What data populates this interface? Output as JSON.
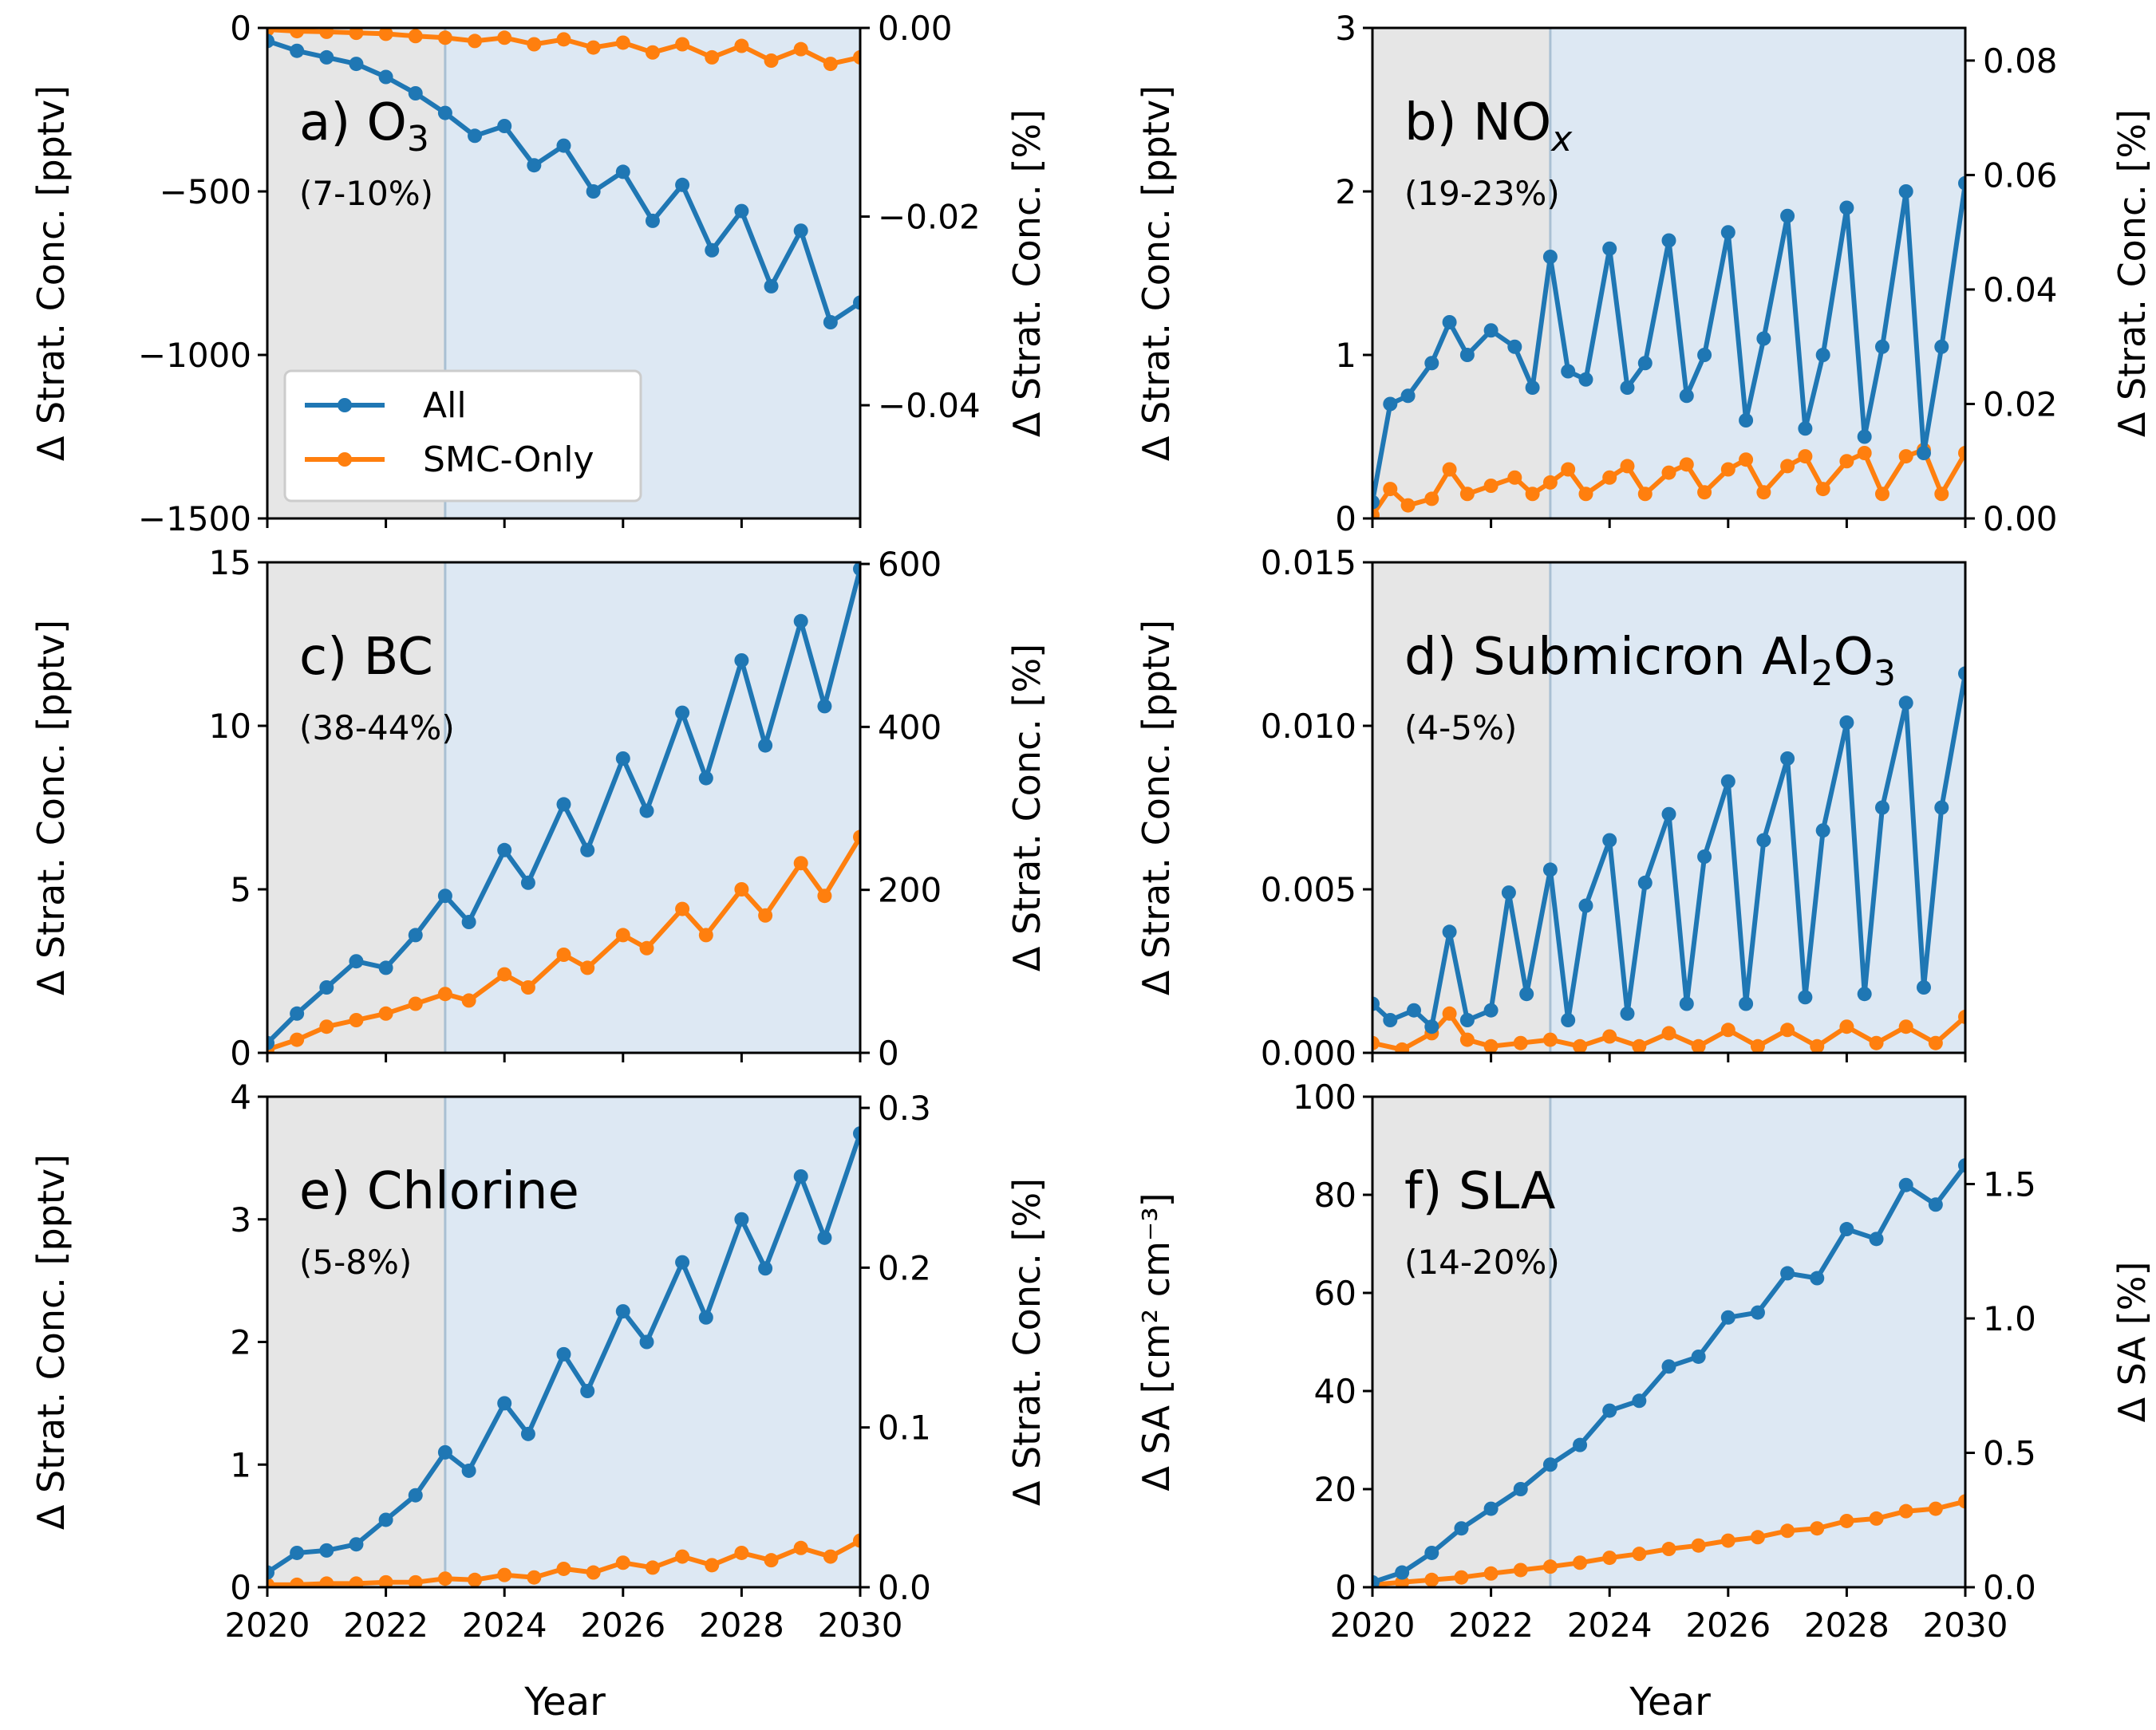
{
  "figure": {
    "xlabel": "Year",
    "left_ylabel_conc": "Δ Strat. Conc. [pptv]",
    "right_ylabel_conc": "Δ Strat. Conc. [%]",
    "left_ylabel_sa": "Δ SA [cm² cm⁻³]",
    "right_ylabel_sa": "Δ SA [%]"
  },
  "legend": {
    "items": [
      "All",
      "SMC-Only"
    ]
  },
  "colors": {
    "all": "#1f77b4",
    "smc": "#ff7f0e",
    "history": "#e6e6e6",
    "projection": "#dde8f3",
    "divider": "#a9c0d3"
  },
  "chart_data": [
    {
      "id": "a",
      "type": "line",
      "label": "a) O",
      "label_sub": "3",
      "note": "(7-10%)",
      "x_range": [
        2020,
        2030
      ],
      "x_divider": 2023,
      "x_ticks": [
        2020,
        2022,
        2024,
        2026,
        2028,
        2030
      ],
      "ylim": [
        -1500,
        0
      ],
      "y_ticks": [
        -1500,
        -1000,
        -500,
        0
      ],
      "y_tick_labels": [
        "−1500",
        "−1000",
        "−500",
        "0"
      ],
      "ylim_right": [
        -0.052,
        0
      ],
      "y_ticks_right": [
        -0.04,
        -0.02,
        0.0
      ],
      "y_tick_labels_right": [
        "−0.04",
        "−0.02",
        "0.00"
      ],
      "series": [
        {
          "name": "All",
          "key": "all",
          "x": [
            2020.0,
            2020.5,
            2021.0,
            2021.5,
            2022.0,
            2022.5,
            2023.0,
            2023.5,
            2024.0,
            2024.5,
            2025.0,
            2025.5,
            2026.0,
            2026.5,
            2027.0,
            2027.5,
            2028.0,
            2028.5,
            2029.0,
            2029.5,
            2030.0
          ],
          "y": [
            -40,
            -70,
            -90,
            -110,
            -150,
            -200,
            -260,
            -330,
            -300,
            -420,
            -360,
            -500,
            -440,
            -590,
            -480,
            -680,
            -560,
            -790,
            -620,
            -900,
            -840
          ]
        },
        {
          "name": "SMC-Only",
          "key": "smc",
          "x": [
            2020.0,
            2020.5,
            2021.0,
            2021.5,
            2022.0,
            2022.5,
            2023.0,
            2023.5,
            2024.0,
            2024.5,
            2025.0,
            2025.5,
            2026.0,
            2026.5,
            2027.0,
            2027.5,
            2028.0,
            2028.5,
            2029.0,
            2029.5,
            2030.0
          ],
          "y": [
            -5,
            -10,
            -12,
            -15,
            -18,
            -25,
            -30,
            -40,
            -30,
            -50,
            -35,
            -60,
            -45,
            -75,
            -50,
            -90,
            -55,
            -100,
            -65,
            -110,
            -90
          ]
        }
      ]
    },
    {
      "id": "b",
      "type": "line",
      "label": "b) NO",
      "label_sub": "x",
      "note": "(19-23%)",
      "x_range": [
        2020,
        2030
      ],
      "x_divider": 2023,
      "x_ticks": [
        2020,
        2022,
        2024,
        2026,
        2028,
        2030
      ],
      "ylim": [
        0,
        3
      ],
      "y_ticks": [
        0,
        1,
        2,
        3
      ],
      "y_tick_labels": [
        "0",
        "1",
        "2",
        "3"
      ],
      "ylim_right": [
        0,
        0.0857
      ],
      "y_ticks_right": [
        0.0,
        0.02,
        0.04,
        0.06,
        0.08
      ],
      "y_tick_labels_right": [
        "0.00",
        "0.02",
        "0.04",
        "0.06",
        "0.08"
      ],
      "series": [
        {
          "name": "All",
          "key": "all",
          "x": [
            2020.0,
            2020.3,
            2020.6,
            2021.0,
            2021.3,
            2021.6,
            2022.0,
            2022.4,
            2022.7,
            2023.0,
            2023.3,
            2023.6,
            2024.0,
            2024.3,
            2024.6,
            2025.0,
            2025.3,
            2025.6,
            2026.0,
            2026.3,
            2026.6,
            2027.0,
            2027.3,
            2027.6,
            2028.0,
            2028.3,
            2028.6,
            2029.0,
            2029.3,
            2029.6,
            2030.0
          ],
          "y": [
            0.1,
            0.7,
            0.75,
            0.95,
            1.2,
            1.0,
            1.15,
            1.05,
            0.8,
            1.6,
            0.9,
            0.85,
            1.65,
            0.8,
            0.95,
            1.7,
            0.75,
            1.0,
            1.75,
            0.6,
            1.1,
            1.85,
            0.55,
            1.0,
            1.9,
            0.5,
            1.05,
            2.0,
            0.4,
            1.05,
            2.05
          ]
        },
        {
          "name": "SMC-Only",
          "key": "smc",
          "x": [
            2020.0,
            2020.3,
            2020.6,
            2021.0,
            2021.3,
            2021.6,
            2022.0,
            2022.4,
            2022.7,
            2023.0,
            2023.3,
            2023.6,
            2024.0,
            2024.3,
            2024.6,
            2025.0,
            2025.3,
            2025.6,
            2026.0,
            2026.3,
            2026.6,
            2027.0,
            2027.3,
            2027.6,
            2028.0,
            2028.3,
            2028.6,
            2029.0,
            2029.3,
            2029.6,
            2030.0
          ],
          "y": [
            0.02,
            0.18,
            0.08,
            0.12,
            0.3,
            0.15,
            0.2,
            0.25,
            0.15,
            0.22,
            0.3,
            0.15,
            0.25,
            0.32,
            0.15,
            0.28,
            0.33,
            0.16,
            0.3,
            0.36,
            0.16,
            0.32,
            0.38,
            0.18,
            0.35,
            0.4,
            0.15,
            0.38,
            0.42,
            0.15,
            0.4
          ]
        }
      ]
    },
    {
      "id": "c",
      "type": "line",
      "label": "c) BC",
      "label_sub": "",
      "note": "(38-44%)",
      "x_range": [
        2020,
        2030
      ],
      "x_divider": 2023,
      "x_ticks": [
        2020,
        2022,
        2024,
        2026,
        2028,
        2030
      ],
      "ylim": [
        0,
        15
      ],
      "y_ticks": [
        0,
        5,
        10,
        15
      ],
      "y_tick_labels": [
        "0",
        "5",
        "10",
        "15"
      ],
      "ylim_right": [
        0,
        602
      ],
      "y_ticks_right": [
        0,
        200,
        400,
        600
      ],
      "y_tick_labels_right": [
        "0",
        "200",
        "400",
        "600"
      ],
      "series": [
        {
          "name": "All",
          "key": "all",
          "x": [
            2020.0,
            2020.5,
            2021.0,
            2021.5,
            2022.0,
            2022.5,
            2023.0,
            2023.4,
            2024.0,
            2024.4,
            2025.0,
            2025.4,
            2026.0,
            2026.4,
            2027.0,
            2027.4,
            2028.0,
            2028.4,
            2029.0,
            2029.4,
            2030.0
          ],
          "y": [
            0.3,
            1.2,
            2.0,
            2.8,
            2.6,
            3.6,
            4.8,
            4.0,
            6.2,
            5.2,
            7.6,
            6.2,
            9.0,
            7.4,
            10.4,
            8.4,
            12.0,
            9.4,
            13.2,
            10.6,
            14.8
          ]
        },
        {
          "name": "SMC-Only",
          "key": "smc",
          "x": [
            2020.0,
            2020.5,
            2021.0,
            2021.5,
            2022.0,
            2022.5,
            2023.0,
            2023.4,
            2024.0,
            2024.4,
            2025.0,
            2025.4,
            2026.0,
            2026.4,
            2027.0,
            2027.4,
            2028.0,
            2028.4,
            2029.0,
            2029.4,
            2030.0
          ],
          "y": [
            0.1,
            0.4,
            0.8,
            1.0,
            1.2,
            1.5,
            1.8,
            1.6,
            2.4,
            2.0,
            3.0,
            2.6,
            3.6,
            3.2,
            4.4,
            3.6,
            5.0,
            4.2,
            5.8,
            4.8,
            6.6
          ]
        }
      ]
    },
    {
      "id": "d",
      "type": "line",
      "label": "d) Submicron Al",
      "label_sub": "2",
      "label_tail": "O",
      "label_sub2": "3",
      "note": "(4-5%)",
      "x_range": [
        2020,
        2030
      ],
      "x_divider": 2023,
      "x_ticks": [
        2020,
        2022,
        2024,
        2026,
        2028,
        2030
      ],
      "ylim": [
        0,
        0.015
      ],
      "y_ticks": [
        0.0,
        0.005,
        0.01,
        0.015
      ],
      "y_tick_labels": [
        "0.000",
        "0.005",
        "0.010",
        "0.015"
      ],
      "series": [
        {
          "name": "All",
          "key": "all",
          "x": [
            2020.0,
            2020.3,
            2020.7,
            2021.0,
            2021.3,
            2021.6,
            2022.0,
            2022.3,
            2022.6,
            2023.0,
            2023.3,
            2023.6,
            2024.0,
            2024.3,
            2024.6,
            2025.0,
            2025.3,
            2025.6,
            2026.0,
            2026.3,
            2026.6,
            2027.0,
            2027.3,
            2027.6,
            2028.0,
            2028.3,
            2028.6,
            2029.0,
            2029.3,
            2029.6,
            2030.0
          ],
          "y": [
            0.0015,
            0.001,
            0.0013,
            0.0008,
            0.0037,
            0.001,
            0.0013,
            0.0049,
            0.0018,
            0.0056,
            0.001,
            0.0045,
            0.0065,
            0.0012,
            0.0052,
            0.0073,
            0.0015,
            0.006,
            0.0083,
            0.0015,
            0.0065,
            0.009,
            0.0017,
            0.0068,
            0.0101,
            0.0018,
            0.0075,
            0.0107,
            0.002,
            0.0075,
            0.0116
          ]
        },
        {
          "name": "SMC-Only",
          "key": "smc",
          "x": [
            2020.0,
            2020.5,
            2021.0,
            2021.3,
            2021.6,
            2022.0,
            2022.5,
            2023.0,
            2023.5,
            2024.0,
            2024.5,
            2025.0,
            2025.5,
            2026.0,
            2026.5,
            2027.0,
            2027.5,
            2028.0,
            2028.5,
            2029.0,
            2029.5,
            2030.0
          ],
          "y": [
            0.0003,
            0.0001,
            0.0006,
            0.0012,
            0.0004,
            0.0002,
            0.0003,
            0.0004,
            0.0002,
            0.0005,
            0.0002,
            0.0006,
            0.0002,
            0.0007,
            0.0002,
            0.0007,
            0.0002,
            0.0008,
            0.0003,
            0.0008,
            0.0003,
            0.0011
          ]
        }
      ]
    },
    {
      "id": "e",
      "type": "line",
      "label": "e) Chlorine",
      "label_sub": "",
      "note": "(5-8%)",
      "x_range": [
        2020,
        2030
      ],
      "x_divider": 2023,
      "x_ticks": [
        2020,
        2022,
        2024,
        2026,
        2028,
        2030
      ],
      "ylim": [
        0,
        4
      ],
      "y_ticks": [
        0,
        1,
        2,
        3,
        4
      ],
      "y_tick_labels": [
        "0",
        "1",
        "2",
        "3",
        "4"
      ],
      "ylim_right": [
        0,
        0.307
      ],
      "y_ticks_right": [
        0.0,
        0.1,
        0.2,
        0.3
      ],
      "y_tick_labels_right": [
        "0.0",
        "0.1",
        "0.2",
        "0.3"
      ],
      "series": [
        {
          "name": "All",
          "key": "all",
          "x": [
            2020.0,
            2020.5,
            2021.0,
            2021.5,
            2022.0,
            2022.5,
            2023.0,
            2023.4,
            2024.0,
            2024.4,
            2025.0,
            2025.4,
            2026.0,
            2026.4,
            2027.0,
            2027.4,
            2028.0,
            2028.4,
            2029.0,
            2029.4,
            2030.0
          ],
          "y": [
            0.12,
            0.28,
            0.3,
            0.35,
            0.55,
            0.75,
            1.1,
            0.95,
            1.5,
            1.25,
            1.9,
            1.6,
            2.25,
            2.0,
            2.65,
            2.2,
            3.0,
            2.6,
            3.35,
            2.85,
            3.7
          ]
        },
        {
          "name": "SMC-Only",
          "key": "smc",
          "x": [
            2020.0,
            2020.5,
            2021.0,
            2021.5,
            2022.0,
            2022.5,
            2023.0,
            2023.5,
            2024.0,
            2024.5,
            2025.0,
            2025.5,
            2026.0,
            2026.5,
            2027.0,
            2027.5,
            2028.0,
            2028.5,
            2029.0,
            2029.5,
            2030.0
          ],
          "y": [
            0.02,
            0.02,
            0.03,
            0.03,
            0.04,
            0.04,
            0.07,
            0.06,
            0.1,
            0.08,
            0.15,
            0.12,
            0.2,
            0.16,
            0.25,
            0.18,
            0.28,
            0.22,
            0.32,
            0.25,
            0.38
          ]
        }
      ]
    },
    {
      "id": "f",
      "type": "line",
      "label": "f) SLA",
      "label_sub": "",
      "note": "(14-20%)",
      "x_range": [
        2020,
        2030
      ],
      "x_divider": 2023,
      "x_ticks": [
        2020,
        2022,
        2024,
        2026,
        2028,
        2030
      ],
      "ylim": [
        0,
        100
      ],
      "y_ticks": [
        0,
        20,
        40,
        60,
        80,
        100
      ],
      "y_tick_labels": [
        "0",
        "20",
        "40",
        "60",
        "80",
        "100"
      ],
      "ylim_right": [
        0,
        1.825
      ],
      "y_ticks_right": [
        0.0,
        0.5,
        1.0,
        1.5
      ],
      "y_tick_labels_right": [
        "0.0",
        "0.5",
        "1.0",
        "1.5"
      ],
      "series": [
        {
          "name": "All",
          "key": "all",
          "x": [
            2020.0,
            2020.5,
            2021.0,
            2021.5,
            2022.0,
            2022.5,
            2023.0,
            2023.5,
            2024.0,
            2024.5,
            2025.0,
            2025.5,
            2026.0,
            2026.5,
            2027.0,
            2027.5,
            2028.0,
            2028.5,
            2029.0,
            2029.5,
            2030.0
          ],
          "y": [
            1,
            3,
            7,
            12,
            16,
            20,
            25,
            29,
            36,
            38,
            45,
            47,
            55,
            56,
            64,
            63,
            73,
            71,
            82,
            78,
            86
          ]
        },
        {
          "name": "SMC-Only",
          "key": "smc",
          "x": [
            2020.0,
            2020.5,
            2021.0,
            2021.5,
            2022.0,
            2022.5,
            2023.0,
            2023.5,
            2024.0,
            2024.5,
            2025.0,
            2025.5,
            2026.0,
            2026.5,
            2027.0,
            2027.5,
            2028.0,
            2028.5,
            2029.0,
            2029.5,
            2030.0
          ],
          "y": [
            0.5,
            1,
            1.5,
            2,
            2.8,
            3.5,
            4.2,
            5,
            6,
            6.8,
            7.8,
            8.5,
            9.5,
            10.2,
            11.5,
            12,
            13.5,
            14,
            15.5,
            16,
            17.5
          ]
        }
      ]
    }
  ]
}
